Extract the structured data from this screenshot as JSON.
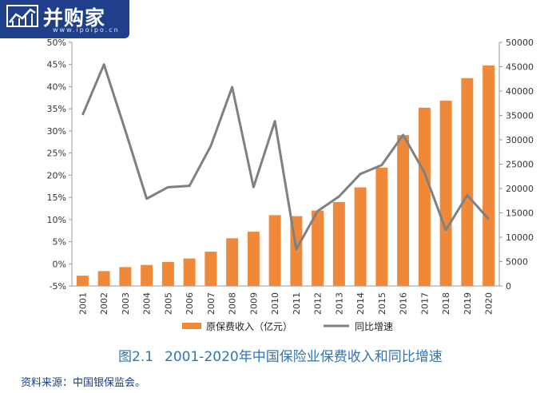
{
  "logo": {
    "name": "并购家",
    "site": "www.ipoipo.cn"
  },
  "caption": {
    "number": "图2.1",
    "text": "2001-2020年中国保险业保费收入和同比增速"
  },
  "source": "资料来源：中国银保监会。",
  "chart_data": {
    "type": "bar",
    "categories": [
      "2001",
      "2002",
      "2003",
      "2004",
      "2005",
      "2006",
      "2007",
      "2008",
      "2009",
      "2010",
      "2011",
      "2012",
      "2013",
      "2014",
      "2015",
      "2016",
      "2017",
      "2018",
      "2019",
      "2020"
    ],
    "series": [
      {
        "name": "原保费收入（亿元）",
        "type": "bar",
        "axis": "right",
        "color": "#f0883a",
        "values": [
          2109,
          3053,
          3880,
          4318,
          4928,
          5640,
          7036,
          9784,
          11137,
          14528,
          14339,
          15488,
          17222,
          20235,
          24283,
          30959,
          36581,
          38017,
          42645,
          45257
        ]
      },
      {
        "name": "同比增速",
        "type": "line",
        "axis": "left",
        "color": "#808080",
        "values": [
          33.6,
          45.0,
          30.1,
          14.7,
          17.3,
          17.6,
          26.6,
          39.9,
          17.3,
          32.2,
          3.3,
          11.9,
          15.2,
          20.3,
          22.3,
          29.1,
          20.6,
          7.6,
          15.5,
          10.1
        ]
      }
    ],
    "y_left": {
      "min": -5,
      "max": 50,
      "step": 5,
      "unit": "%",
      "ticks": [
        "-5%",
        "0%",
        "5%",
        "10%",
        "15%",
        "20%",
        "25%",
        "30%",
        "35%",
        "40%",
        "45%",
        "50%"
      ]
    },
    "y_right": {
      "min": 0,
      "max": 50000,
      "step": 5000,
      "ticks": [
        "0",
        "5000",
        "10000",
        "15000",
        "20000",
        "25000",
        "30000",
        "35000",
        "40000",
        "45000",
        "50000"
      ]
    },
    "grid": false,
    "legend": "bottom"
  }
}
